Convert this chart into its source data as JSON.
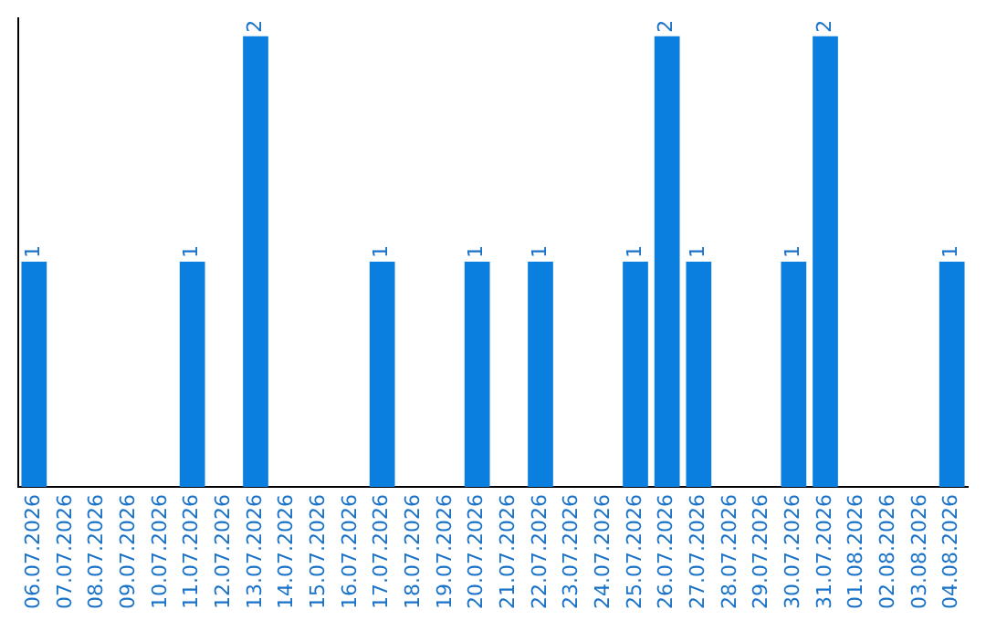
{
  "chart_data": {
    "type": "bar",
    "categories": [
      "06.07.2026",
      "07.07.2026",
      "08.07.2026",
      "09.07.2026",
      "10.07.2026",
      "11.07.2026",
      "12.07.2026",
      "13.07.2026",
      "14.07.2026",
      "15.07.2026",
      "16.07.2026",
      "17.07.2026",
      "18.07.2026",
      "19.07.2026",
      "20.07.2026",
      "21.07.2026",
      "22.07.2026",
      "23.07.2026",
      "24.07.2026",
      "25.07.2026",
      "26.07.2026",
      "27.07.2026",
      "28.07.2026",
      "29.07.2026",
      "30.07.2026",
      "31.07.2026",
      "01.08.2026",
      "02.08.2026",
      "03.08.2026",
      "04.08.2026"
    ],
    "values": [
      1,
      0,
      0,
      0,
      0,
      1,
      0,
      2,
      0,
      0,
      0,
      1,
      0,
      0,
      1,
      0,
      1,
      0,
      0,
      1,
      2,
      1,
      0,
      0,
      1,
      2,
      0,
      0,
      0,
      1
    ],
    "value_labels": [
      "1",
      null,
      null,
      null,
      null,
      "1",
      null,
      "2",
      null,
      null,
      null,
      "1",
      null,
      null,
      "1",
      null,
      "1",
      null,
      null,
      "1",
      "2",
      "1",
      null,
      null,
      "1",
      "2",
      null,
      null,
      null,
      "1"
    ],
    "color": "#0a7fe0",
    "ylim": [
      0,
      2.08
    ],
    "tick_labels": "x",
    "grid": false,
    "legend": false
  }
}
